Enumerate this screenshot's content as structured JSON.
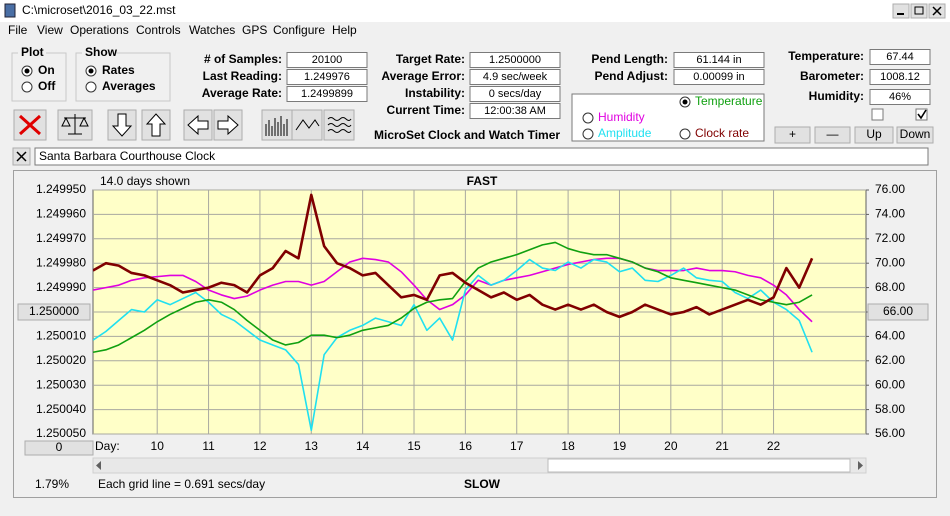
{
  "window": {
    "title": "C:\\microset\\2016_03_22.mst",
    "menu": [
      "File",
      "View",
      "Operations",
      "Controls",
      "Watches",
      "GPS",
      "Configure",
      "Help"
    ]
  },
  "plot_group": {
    "title": "Plot",
    "options": [
      "On",
      "Off"
    ]
  },
  "show_group": {
    "title": "Show",
    "options": [
      "Rates",
      "Averages"
    ]
  },
  "readouts": [
    {
      "label": "# of Samples:",
      "value": "20100"
    },
    {
      "label": "Last Reading:",
      "value": "1.249976"
    },
    {
      "label": "Average Rate:",
      "value": "1.2499899"
    },
    {
      "label": "Target Rate:",
      "value": "1.2500000"
    },
    {
      "label": "Average Error:",
      "value": "4.9 sec/week"
    },
    {
      "label": "Instability:",
      "value": "0 secs/day"
    },
    {
      "label": "Current Time:",
      "value": "12:00:38 AM"
    },
    {
      "label": "Pend Length:",
      "value": "61.144 in"
    },
    {
      "label": "Pend Adjust:",
      "value": "0.00099 in"
    },
    {
      "label": "Temperature:",
      "value": "67.44"
    },
    {
      "label": "Barometer:",
      "value": "1008.12"
    },
    {
      "label": "Humidity:",
      "value": "46%"
    }
  ],
  "app_title": "MicroSet Clock and Watch Timer",
  "buttons": [
    "+",
    "—",
    "Up",
    "Down"
  ],
  "clock_name": "Santa Barbara Courthouse Clock",
  "chart_data": {
    "type": "line",
    "days_shown": "14.0 days shown",
    "top_label": "FAST",
    "bottom_label": "SLOW",
    "x_label": "Day:",
    "scroll_value": "0",
    "grid_note": "Each grid line = 0.691 secs/day",
    "status": "1.79%",
    "grid": true,
    "xlim": [
      8.75,
      23.8
    ],
    "xticks": [
      10,
      11,
      12,
      13,
      14,
      15,
      16,
      17,
      18,
      19,
      20,
      21,
      22
    ],
    "ylim": [
      1.25005,
      1.24995
    ],
    "yticks": [
      {
        "value": 1.24995,
        "label": "1.249950"
      },
      {
        "value": 1.24996,
        "label": "1.249960"
      },
      {
        "value": 1.24997,
        "label": "1.249970"
      },
      {
        "value": 1.24998,
        "label": "1.249980"
      },
      {
        "value": 1.24999,
        "label": "1.249990"
      },
      {
        "value": 1.25,
        "label": "1.250000"
      },
      {
        "value": 1.25001,
        "label": "1.250010"
      },
      {
        "value": 1.25002,
        "label": "1.250020"
      },
      {
        "value": 1.25003,
        "label": "1.250030"
      },
      {
        "value": 1.25004,
        "label": "1.250040"
      },
      {
        "value": 1.25005,
        "label": "1.250050"
      }
    ],
    "y2lim": [
      56,
      76
    ],
    "y2ticks": [
      {
        "value": 76,
        "label": "76.00"
      },
      {
        "value": 74,
        "label": "74.00"
      },
      {
        "value": 72,
        "label": "72.00"
      },
      {
        "value": 70,
        "label": "70.00"
      },
      {
        "value": 68,
        "label": "68.00"
      },
      {
        "value": 66,
        "label": "66.00"
      },
      {
        "value": 64,
        "label": "64.00"
      },
      {
        "value": 62,
        "label": "62.00"
      },
      {
        "value": 60,
        "label": "60.00"
      },
      {
        "value": 58,
        "label": "58.00"
      },
      {
        "value": 56,
        "label": "56.00"
      }
    ],
    "x": [
      8.75,
      9,
      9.25,
      9.5,
      9.75,
      10,
      10.25,
      10.5,
      10.75,
      11,
      11.25,
      11.5,
      11.75,
      12,
      12.25,
      12.5,
      12.75,
      13,
      13.25,
      13.5,
      13.75,
      14,
      14.25,
      14.5,
      14.75,
      15,
      15.25,
      15.5,
      15.75,
      16,
      16.25,
      16.5,
      16.75,
      17,
      17.25,
      17.5,
      17.75,
      18,
      18.25,
      18.5,
      18.75,
      19,
      19.25,
      19.5,
      19.75,
      20,
      20.25,
      20.5,
      20.75,
      21,
      21.25,
      21.5,
      21.75,
      22,
      22.25,
      22.5,
      22.75
    ],
    "series": [
      {
        "name": "Clock rate",
        "color": "#800000",
        "axis": "y",
        "values": [
          1.249983,
          1.24998,
          1.249981,
          1.249984,
          1.249985,
          1.249987,
          1.249989,
          1.249992,
          1.249991,
          1.24999,
          1.249988,
          1.249989,
          1.249992,
          1.249985,
          1.249982,
          1.249975,
          1.249978,
          1.249952,
          1.249973,
          1.24998,
          1.249982,
          1.249985,
          1.249984,
          1.249989,
          1.249994,
          1.249993,
          1.249995,
          1.249985,
          1.249984,
          1.249988,
          1.249991,
          1.249994,
          1.249992,
          1.249995,
          1.249993,
          1.249997,
          1.249999,
          1.249997,
          1.249999,
          1.249997,
          1.25,
          1.250002,
          1.25,
          1.249997,
          1.249999,
          1.250001,
          1.25,
          1.249998,
          1.250001,
          1.249999,
          1.249997,
          1.249995,
          1.249997,
          1.249994,
          1.249982,
          1.24999,
          1.249978
        ]
      },
      {
        "name": "Humidity",
        "color": "#e000e0",
        "axis": "y2",
        "values": [
          67.8,
          68.0,
          68.2,
          68.6,
          68.8,
          68.9,
          69.0,
          69.0,
          68.5,
          67.8,
          67.4,
          67.1,
          67.3,
          67.8,
          68.2,
          68.5,
          68.5,
          68.2,
          68.5,
          69.3,
          70.1,
          70.4,
          70.3,
          70.1,
          69.3,
          68.2,
          67.0,
          66.2,
          66.6,
          67.4,
          68.6,
          68.2,
          68.6,
          68.8,
          69.0,
          69.3,
          69.6,
          69.9,
          70.1,
          70.3,
          70.4,
          70.4,
          70.1,
          69.6,
          69.4,
          69.4,
          69.4,
          69.6,
          69.4,
          69.4,
          69.3,
          69.0,
          68.8,
          68.2,
          67.4,
          66.2,
          65.2
        ]
      },
      {
        "name": "Amplitude",
        "color": "#20e0f0",
        "axis": "y2",
        "values": [
          63.7,
          64.4,
          65.3,
          66.2,
          66.0,
          67.0,
          66.6,
          67.1,
          67.6,
          66.8,
          65.8,
          65.3,
          64.5,
          63.7,
          63.3,
          62.9,
          61.7,
          56.3,
          62.5,
          63.9,
          64.5,
          64.9,
          65.5,
          65.2,
          64.9,
          66.6,
          64.5,
          65.5,
          63.7,
          67.8,
          69.0,
          68.2,
          68.6,
          69.4,
          70.3,
          69.6,
          69.4,
          70.1,
          69.6,
          70.3,
          70.1,
          69.3,
          69.6,
          68.6,
          68.5,
          69.0,
          69.6,
          68.8,
          68.6,
          68.5,
          67.6,
          67.1,
          67.8,
          66.8,
          66.2,
          65.3,
          62.7
        ]
      },
      {
        "name": "Temperature",
        "color": "#10a010",
        "axis": "y2",
        "values": [
          62.7,
          62.9,
          63.3,
          63.9,
          64.5,
          65.2,
          65.8,
          66.3,
          66.8,
          67.0,
          66.8,
          66.2,
          65.3,
          64.5,
          63.7,
          63.3,
          63.5,
          64.1,
          64.1,
          63.9,
          64.1,
          64.5,
          64.7,
          64.9,
          65.5,
          66.3,
          66.8,
          67.0,
          67.1,
          68.5,
          69.6,
          70.1,
          70.4,
          70.7,
          71.1,
          71.5,
          71.7,
          71.2,
          70.9,
          70.7,
          70.7,
          70.4,
          70.1,
          69.6,
          69.3,
          68.8,
          68.6,
          68.4,
          68.2,
          68.0,
          67.8,
          67.4,
          67.0,
          66.8,
          66.6,
          66.8,
          67.4
        ]
      }
    ]
  }
}
